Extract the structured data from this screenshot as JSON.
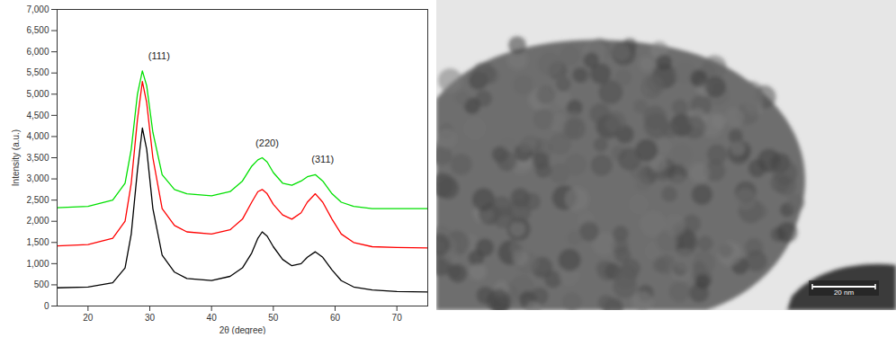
{
  "chart_data": {
    "type": "line",
    "x_label": "2θ (degree)",
    "y_label": "Intensity (a.u.)",
    "xlim": [
      15,
      75
    ],
    "xticks": [
      20,
      30,
      40,
      50,
      60,
      70
    ],
    "ylim": [
      0,
      7000
    ],
    "yticks": [
      0,
      500,
      1000,
      1500,
      2000,
      2500,
      3000,
      3500,
      4000,
      4500,
      5000,
      5500,
      6000,
      6500,
      7000
    ],
    "grid": false,
    "x": [
      15,
      20,
      24,
      26,
      27,
      28,
      28.8,
      29.5,
      30.5,
      32,
      34,
      36,
      40,
      43,
      45,
      46.5,
      47.5,
      48.2,
      49,
      50,
      51.5,
      53,
      54.5,
      55.5,
      56.8,
      58,
      59.5,
      61,
      63,
      66,
      70,
      75
    ],
    "series": [
      {
        "color": "#00e000",
        "values": [
          2320,
          2350,
          2500,
          2900,
          3700,
          5000,
          5550,
          5200,
          4100,
          3100,
          2750,
          2650,
          2600,
          2700,
          2950,
          3300,
          3450,
          3500,
          3400,
          3150,
          2900,
          2850,
          2950,
          3050,
          3100,
          2950,
          2650,
          2450,
          2350,
          2300,
          2300,
          2300
        ]
      },
      {
        "color": "#ff0000",
        "values": [
          1420,
          1450,
          1600,
          2000,
          2900,
          4400,
          5300,
          4800,
          3500,
          2300,
          1900,
          1750,
          1700,
          1800,
          2050,
          2450,
          2700,
          2750,
          2650,
          2400,
          2150,
          2050,
          2200,
          2450,
          2650,
          2450,
          2050,
          1700,
          1500,
          1400,
          1380,
          1370
        ]
      },
      {
        "color": "#000000",
        "values": [
          430,
          450,
          550,
          900,
          1700,
          3200,
          4200,
          3700,
          2300,
          1200,
          800,
          650,
          600,
          700,
          900,
          1250,
          1600,
          1750,
          1650,
          1400,
          1100,
          950,
          1000,
          1150,
          1280,
          1150,
          850,
          600,
          450,
          380,
          340,
          330
        ]
      }
    ],
    "annotations": [
      {
        "text": "(111)",
        "x": 31.5,
        "y": 5900
      },
      {
        "text": "(220)",
        "x": 49,
        "y": 3850
      },
      {
        "text": "(311)",
        "x": 58,
        "y": 3450
      }
    ]
  },
  "micrograph": {
    "scale_bar": "20 nm"
  }
}
